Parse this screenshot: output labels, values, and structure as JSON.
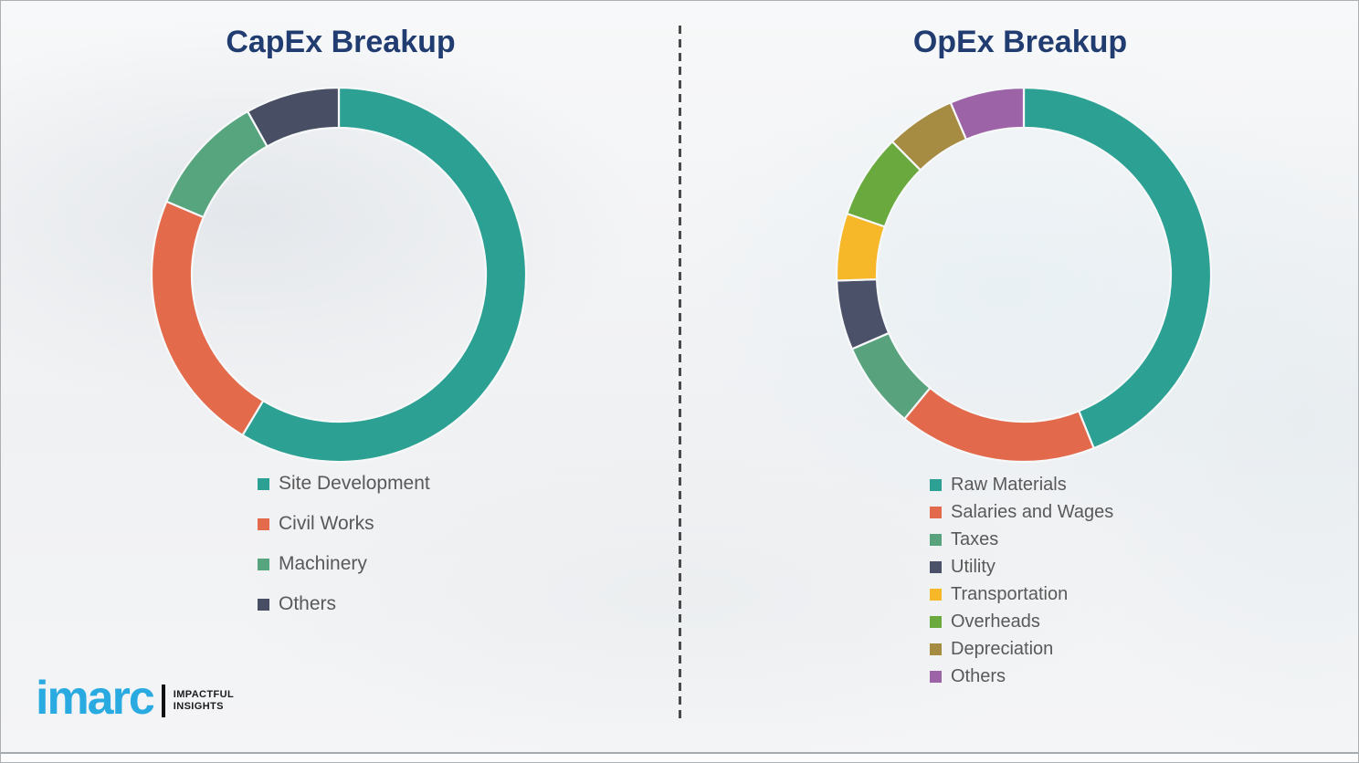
{
  "chart_data": [
    {
      "type": "pie",
      "subtype": "donut",
      "title": "CapEx Breakup",
      "categories": [
        "Site Development",
        "Civil Works",
        "Machinery",
        "Others"
      ],
      "values": [
        58.6,
        22.8,
        10.5,
        8.1
      ],
      "colors": [
        "#2ba093",
        "#e36a4b",
        "#57a57e",
        "#484f64"
      ],
      "start_angle_deg": 0,
      "direction": "clockwise",
      "legend_position": "bottom-left",
      "data_labels": "none",
      "units": "percent"
    },
    {
      "type": "pie",
      "subtype": "donut",
      "title": "OpEx Breakup",
      "categories": [
        "Raw Materials",
        "Salaries and Wages",
        "Taxes",
        "Utility",
        "Transportation",
        "Overheads",
        "Depreciation",
        "Others"
      ],
      "values": [
        43.9,
        17.1,
        7.5,
        6.0,
        5.8,
        7.3,
        6.0,
        6.4
      ],
      "colors": [
        "#2ba093",
        "#e2694b",
        "#58a27d",
        "#4a5168",
        "#f6b729",
        "#69a93e",
        "#a68b42",
        "#9c64a6"
      ],
      "start_angle_deg": 0,
      "direction": "clockwise",
      "legend_position": "bottom-left",
      "data_labels": "none",
      "units": "percent"
    }
  ],
  "titles": {
    "title_color": "#213c70",
    "legend_text_color": "#595959"
  },
  "logo": {
    "brand": "imarc",
    "tagline_line1": "IMPACTFUL",
    "tagline_line2": "INSIGHTS",
    "brand_color": "#29aae1"
  },
  "icons": {
    "legend_swatch": "filled-square",
    "divider": "vertical-dashed-line"
  }
}
